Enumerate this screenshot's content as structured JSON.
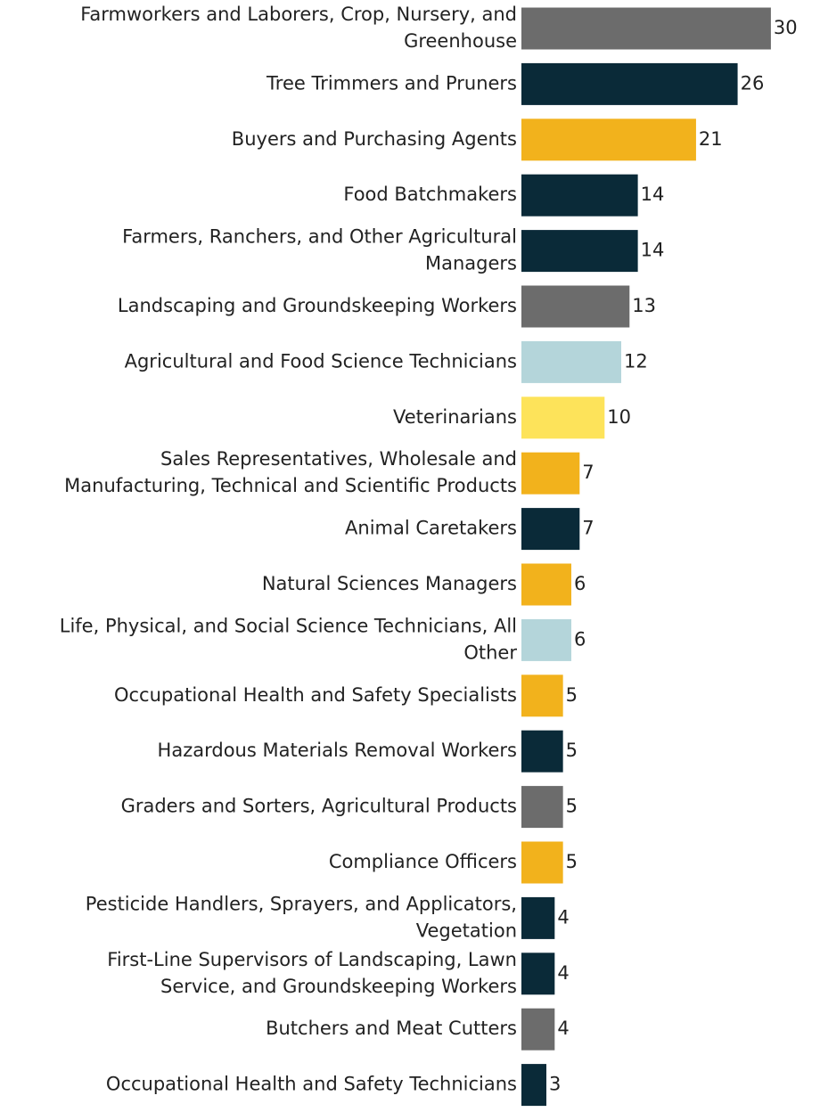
{
  "chart_data": {
    "type": "bar",
    "orientation": "horizontal",
    "title": "",
    "xlabel": "",
    "ylabel": "",
    "xlim": [
      0,
      30
    ],
    "grid": false,
    "legend": "none",
    "palette": {
      "dark-navy": "#0a2a38",
      "gray": "#6c6c6c",
      "gold": "#f2b21c",
      "yellow": "#fde35a",
      "light-blue": "#b4d5da"
    },
    "categories": [
      [
        "Farmworkers and Laborers, Crop, Nursery, and",
        "Greenhouse"
      ],
      [
        "Tree Trimmers and Pruners"
      ],
      [
        "Buyers and Purchasing Agents"
      ],
      [
        "Food Batchmakers"
      ],
      [
        "Farmers, Ranchers, and Other Agricultural",
        "Managers"
      ],
      [
        "Landscaping and Groundskeeping Workers"
      ],
      [
        "Agricultural and Food Science Technicians"
      ],
      [
        "Veterinarians"
      ],
      [
        "Sales Representatives, Wholesale and",
        "Manufacturing, Technical and Scientific Products"
      ],
      [
        "Animal Caretakers"
      ],
      [
        "Natural Sciences Managers"
      ],
      [
        "Life, Physical, and Social Science Technicians, All",
        "Other"
      ],
      [
        "Occupational Health and Safety Specialists"
      ],
      [
        "Hazardous Materials Removal Workers"
      ],
      [
        "Graders and Sorters, Agricultural Products"
      ],
      [
        "Compliance Officers"
      ],
      [
        "Pesticide Handlers, Sprayers, and Applicators,",
        "Vegetation"
      ],
      [
        "First-Line Supervisors of Landscaping, Lawn",
        "Service, and Groundskeeping Workers"
      ],
      [
        "Butchers and Meat Cutters"
      ],
      [
        "Occupational Health and Safety Technicians"
      ]
    ],
    "values": [
      30,
      26,
      21,
      14,
      14,
      13,
      12,
      10,
      7,
      7,
      6,
      6,
      5,
      5,
      5,
      5,
      4,
      4,
      4,
      3
    ],
    "bar_colors": [
      "#6c6c6c",
      "#0a2a38",
      "#f2b21c",
      "#0a2a38",
      "#0a2a38",
      "#6c6c6c",
      "#b4d5da",
      "#fde35a",
      "#f2b21c",
      "#0a2a38",
      "#f2b21c",
      "#b4d5da",
      "#f2b21c",
      "#0a2a38",
      "#6c6c6c",
      "#f2b21c",
      "#0a2a38",
      "#0a2a38",
      "#6c6c6c",
      "#0a2a38"
    ]
  }
}
